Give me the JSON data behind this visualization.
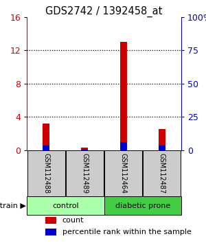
{
  "title": "GDS2742 / 1392458_at",
  "samples": [
    "GSM112488",
    "GSM112489",
    "GSM112464",
    "GSM112487"
  ],
  "count_values": [
    3.2,
    0.28,
    13.0,
    2.5
  ],
  "percentile_values": [
    3.2,
    0.48,
    6.2,
    3.2
  ],
  "left_ylim": [
    0,
    16
  ],
  "left_yticks": [
    0,
    4,
    8,
    12,
    16
  ],
  "right_ylim": [
    0,
    100
  ],
  "right_yticks": [
    0,
    25,
    50,
    75,
    100
  ],
  "right_yticklabels": [
    "0",
    "25",
    "50",
    "75",
    "100%"
  ],
  "count_color": "#cc0000",
  "percentile_color": "#0000cc",
  "bar_width": 0.18,
  "groups": [
    {
      "label": "control",
      "color": "#aaffaa"
    },
    {
      "label": "diabetic prone",
      "color": "#44cc44"
    }
  ],
  "ylabel_right_color": "#0000bb",
  "ylabel_left_color": "#cc0000",
  "background_color": "#ffffff",
  "sample_box_color": "#cccccc",
  "legend_count_label": "count",
  "legend_percentile_label": "percentile rank within the sample",
  "strain_label": "strain",
  "arrow_char": "▶",
  "grid_yticks": [
    4,
    8,
    12
  ]
}
